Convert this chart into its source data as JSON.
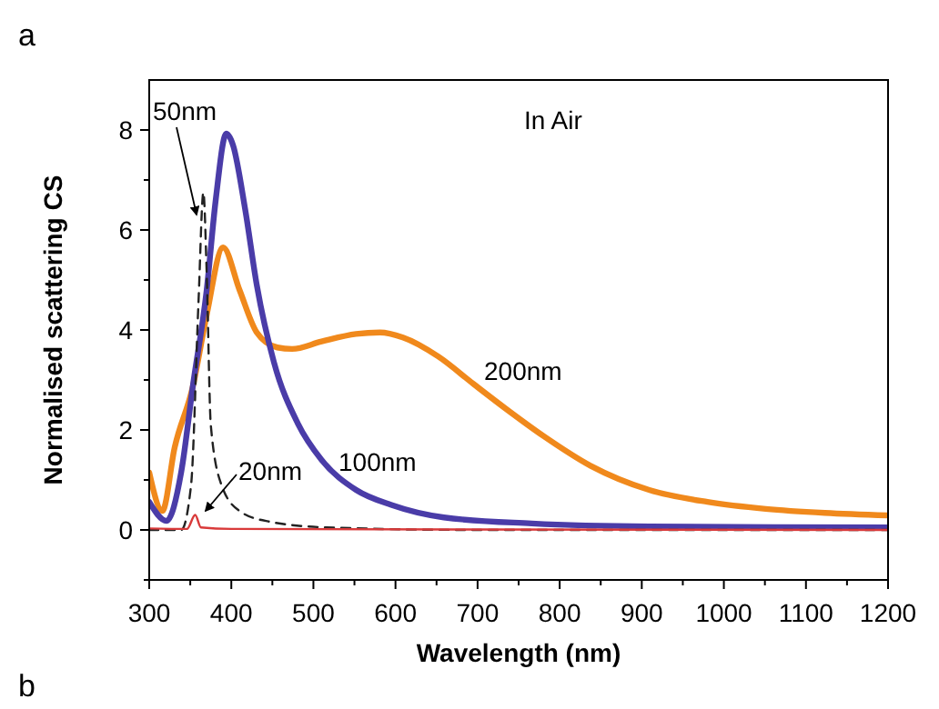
{
  "chart_data": {
    "type": "line",
    "title": "a",
    "xlabel": "Wavelength (nm)",
    "ylabel": "Normalised scattering CS",
    "xlim": [
      300,
      1200
    ],
    "ylim": [
      -1,
      9
    ],
    "xticks": [
      300,
      {
        "value": 350,
        "label": null
      },
      400,
      {
        "value": 450,
        "label": null
      },
      500,
      {
        "value": 550,
        "label": null
      },
      600,
      {
        "value": 650,
        "label": null
      },
      700,
      {
        "value": 750,
        "label": null
      },
      800,
      {
        "value": 850,
        "label": null
      },
      900,
      {
        "value": 950,
        "label": null
      },
      1000,
      {
        "value": 1050,
        "label": null
      },
      1100,
      {
        "value": 1150,
        "label": null
      },
      1200
    ],
    "yticks": [
      {
        "value": -1,
        "label": null
      },
      0,
      {
        "value": 1,
        "label": null
      },
      2,
      {
        "value": 3,
        "label": null
      },
      4,
      {
        "value": 5,
        "label": null
      },
      6,
      {
        "value": 7,
        "label": null
      },
      8
    ],
    "grid": false,
    "series": [
      {
        "name": "200nm",
        "color": "#f0891c",
        "x": [
          300,
          316,
          331,
          353,
          370,
          390,
          410,
          431,
          456,
          474,
          510,
          552,
          581,
          609,
          652,
          695,
          738,
          781,
          838,
          909,
          980,
          1051,
          1123,
          1200
        ],
        "values": [
          1.15,
          0.38,
          1.65,
          2.86,
          4.3,
          5.65,
          4.8,
          3.95,
          3.65,
          3.62,
          3.77,
          3.92,
          3.95,
          3.85,
          3.47,
          2.92,
          2.38,
          1.87,
          1.28,
          0.8,
          0.56,
          0.42,
          0.34,
          0.29
        ]
      },
      {
        "name": "100nm",
        "color": "#4a3ca8",
        "x": [
          300,
          321,
          339,
          353,
          370,
          381,
          394,
          402,
          417,
          431,
          452,
          481,
          510,
          552,
          595,
          659,
          766,
          909,
          1200
        ],
        "values": [
          0.56,
          0.18,
          1.16,
          2.86,
          4.8,
          6.6,
          7.93,
          7.7,
          6.4,
          4.9,
          3.35,
          2.13,
          1.4,
          0.8,
          0.5,
          0.25,
          0.13,
          0.07,
          0.05
        ]
      },
      {
        "name": "50nm",
        "color": "#222222",
        "line_style": "dashed",
        "x": [
          300,
          339,
          351,
          360,
          366,
          370,
          375,
          388,
          410,
          445,
          516,
          695,
          1200
        ],
        "values": [
          0,
          0,
          0.9,
          4.55,
          6.75,
          5.15,
          2.1,
          0.9,
          0.38,
          0.17,
          0.05,
          0,
          0
        ]
      },
      {
        "name": "20nm",
        "color": "#d93a3a",
        "x": [
          300,
          346,
          356,
          363,
          400,
          1200
        ],
        "values": [
          0.03,
          0.02,
          0.3,
          0.05,
          0.02,
          0
        ]
      }
    ],
    "annotations": [
      "In Air",
      "b"
    ]
  }
}
